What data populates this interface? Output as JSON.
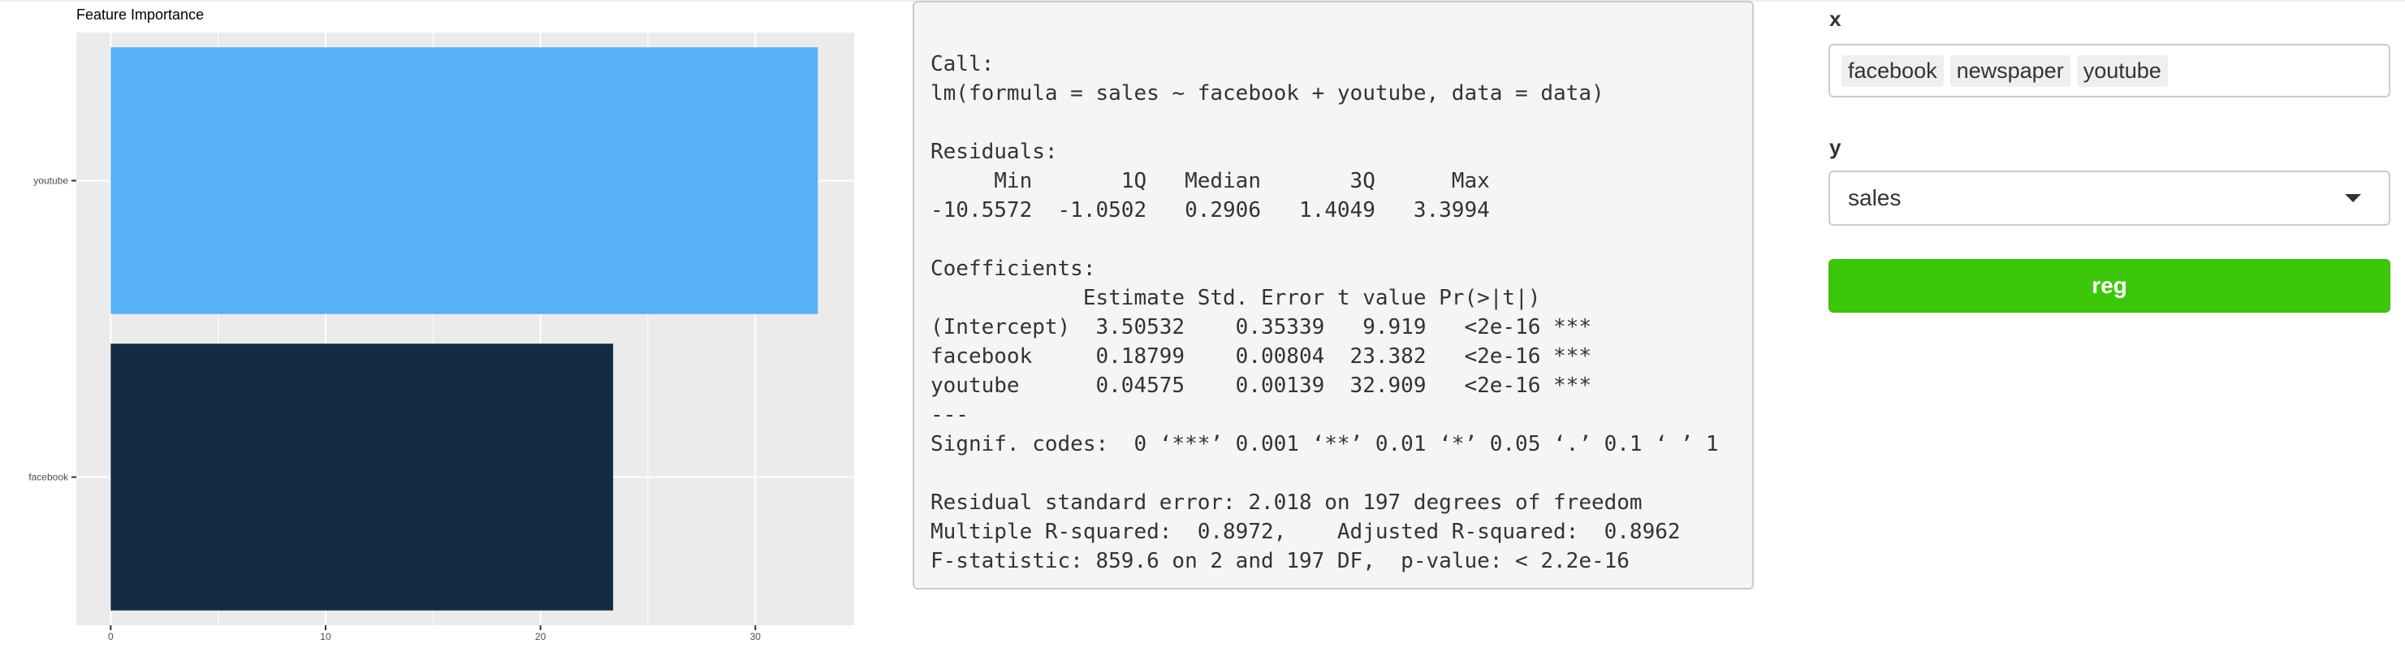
{
  "plot": {
    "title": "Feature Importance"
  },
  "chart_data": {
    "type": "bar",
    "orientation": "horizontal",
    "title": "Feature Importance",
    "xlabel": "",
    "ylabel": "",
    "categories": [
      "youtube",
      "facebook"
    ],
    "values": [
      32.909,
      23.382
    ],
    "colors": [
      "#56b1f7",
      "#132b43"
    ],
    "xlim": [
      -1.6,
      34.6
    ],
    "xticks": [
      0,
      10,
      20,
      30
    ],
    "grid": true
  },
  "summary": {
    "text": "Call:\nlm(formula = sales ~ facebook + youtube, data = data)\n\nResiduals:\n     Min       1Q   Median       3Q      Max \n-10.5572  -1.0502   0.2906   1.4049   3.3994 \n\nCoefficients:\n            Estimate Std. Error t value Pr(>|t|)    \n(Intercept)  3.50532    0.35339   9.919   <2e-16 ***\nfacebook     0.18799    0.00804  23.382   <2e-16 ***\nyoutube      0.04575    0.00139  32.909   <2e-16 ***\n---\nSignif. codes:  0 ‘***’ 0.001 ‘**’ 0.01 ‘*’ 0.05 ‘.’ 0.1 ‘ ’ 1\n\nResidual standard error: 2.018 on 197 degrees of freedom\nMultiple R-squared:  0.8972,\tAdjusted R-squared:  0.8962 \nF-statistic: 859.6 on 2 and 197 DF,  p-value: < 2.2e-16"
  },
  "controls": {
    "x_label": "x",
    "x_selected": [
      "facebook",
      "newspaper",
      "youtube"
    ],
    "y_label": "y",
    "y_selected": "sales",
    "button_label": "reg"
  },
  "icons": {
    "dropdown": "caret-down-icon"
  }
}
